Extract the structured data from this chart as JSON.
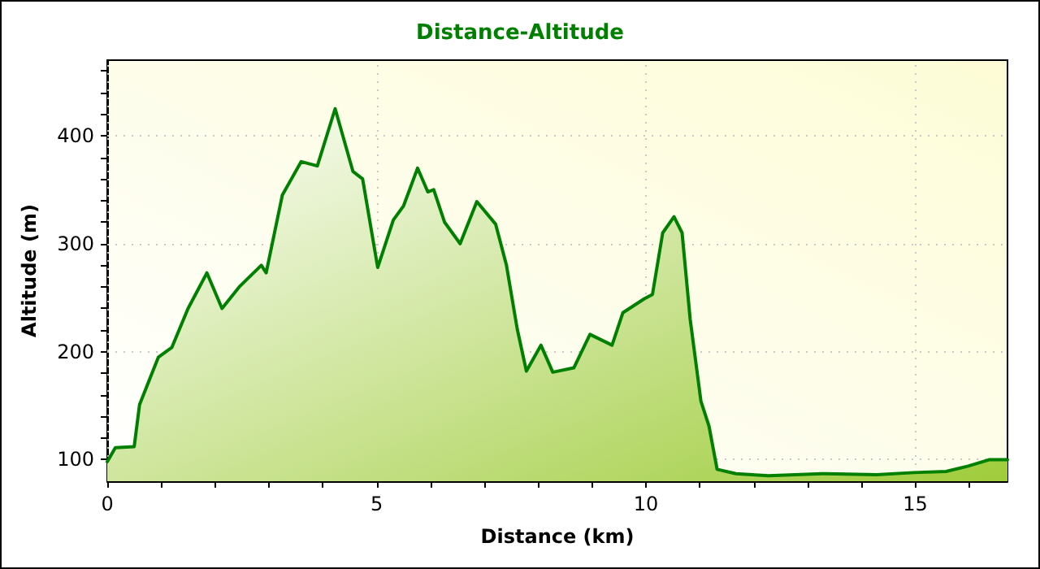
{
  "chart_data": {
    "type": "area",
    "title": "Distance-Altitude",
    "xlabel": "Distance (km)",
    "ylabel": "Altitude (m)",
    "x": [
      0,
      0.15,
      0.5,
      0.6,
      0.95,
      1.2,
      1.5,
      1.85,
      2.13,
      2.45,
      2.86,
      2.95,
      3.25,
      3.6,
      3.9,
      4.23,
      4.56,
      4.74,
      5.02,
      5.31,
      5.5,
      5.76,
      5.95,
      6.06,
      6.26,
      6.55,
      6.86,
      7.21,
      7.41,
      7.61,
      7.78,
      8.05,
      8.27,
      8.66,
      8.96,
      9.37,
      9.57,
      9.97,
      10.12,
      10.31,
      10.52,
      10.67,
      10.82,
      11.02,
      11.17,
      11.32,
      11.67,
      12.27,
      13.27,
      14.28,
      14.97,
      15.57,
      15.98,
      16.38,
      16.71
    ],
    "series": [
      {
        "color": "#008000",
        "values": [
          98,
          111,
          112,
          151,
          195,
          204,
          240,
          273,
          240,
          260,
          280,
          273,
          345,
          376,
          372,
          425,
          367,
          360,
          278,
          322,
          335,
          370,
          348,
          350,
          320,
          300,
          339,
          318,
          280,
          221,
          182,
          206,
          181,
          185,
          216,
          206,
          236,
          249,
          253,
          310,
          325,
          310,
          230,
          154,
          131,
          91,
          87,
          85,
          87,
          86,
          88,
          89,
          94,
          100,
          100
        ]
      }
    ],
    "xlim": [
      0,
      16.71
    ],
    "xticks": [
      0,
      {
        "value": 1,
        "label": null
      },
      {
        "value": 2,
        "label": null
      },
      {
        "value": 3,
        "label": null
      },
      {
        "value": 4,
        "label": null
      },
      5,
      {
        "value": 6,
        "label": null
      },
      {
        "value": 7,
        "label": null
      },
      {
        "value": 8,
        "label": null
      },
      {
        "value": 9,
        "label": null
      },
      10,
      {
        "value": 11,
        "label": null
      },
      {
        "value": 12,
        "label": null
      },
      {
        "value": 13,
        "label": null
      },
      {
        "value": 14,
        "label": null
      },
      15,
      {
        "value": 16,
        "label": null
      }
    ],
    "ylim": [
      80,
      470
    ],
    "yticks": [
      100,
      {
        "value": 120,
        "label": null
      },
      {
        "value": 140,
        "label": null
      },
      {
        "value": 160,
        "label": null
      },
      {
        "value": 180,
        "label": null
      },
      200,
      {
        "value": 220,
        "label": null
      },
      {
        "value": 240,
        "label": null
      },
      {
        "value": 260,
        "label": null
      },
      {
        "value": 280,
        "label": null
      },
      300,
      {
        "value": 320,
        "label": null
      },
      {
        "value": 340,
        "label": null
      },
      {
        "value": 360,
        "label": null
      },
      {
        "value": 380,
        "label": null
      },
      400,
      {
        "value": 420,
        "label": null
      },
      {
        "value": 440,
        "label": null
      },
      {
        "value": 460,
        "label": null
      }
    ],
    "grid": true,
    "marker": "none",
    "line_style": "solid"
  }
}
